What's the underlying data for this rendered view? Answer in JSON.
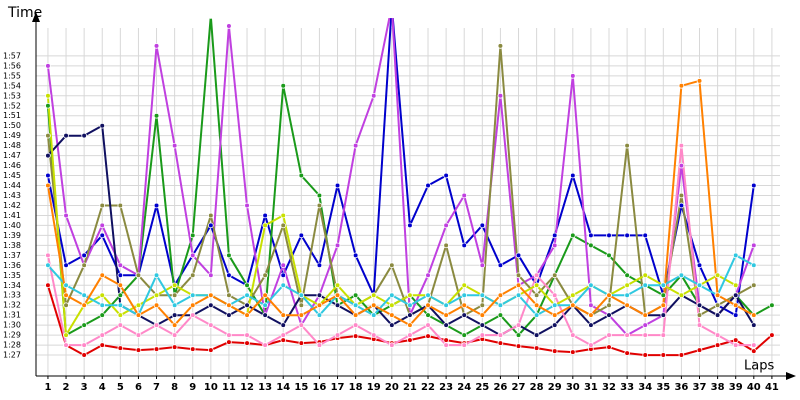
{
  "chart_data": {
    "type": "line",
    "y_label": "Time",
    "x_label": "Laps",
    "x": [
      1,
      2,
      3,
      4,
      5,
      6,
      7,
      8,
      9,
      10,
      11,
      12,
      13,
      14,
      15,
      16,
      17,
      18,
      19,
      20,
      21,
      22,
      23,
      24,
      25,
      26,
      27,
      28,
      29,
      30,
      31,
      32,
      33,
      34,
      35,
      36,
      37,
      38,
      39,
      40,
      41
    ],
    "xticks": [
      1,
      2,
      3,
      4,
      5,
      6,
      7,
      8,
      9,
      10,
      11,
      12,
      13,
      14,
      15,
      16,
      17,
      18,
      19,
      20,
      21,
      22,
      23,
      24,
      25,
      26,
      27,
      28,
      29,
      30,
      31,
      32,
      33,
      34,
      35,
      36,
      37,
      38,
      39,
      40,
      41
    ],
    "xlim": [
      0.34,
      42
    ],
    "ylim": [
      84.9,
      120.8
    ],
    "yticks": [
      {
        "value": 87,
        "label": "1:27"
      },
      {
        "value": 88,
        "label": "1:28"
      },
      {
        "value": 89,
        "label": "1:29"
      },
      {
        "value": 90,
        "label": "1:30"
      },
      {
        "value": 91,
        "label": "1:31"
      },
      {
        "value": 92,
        "label": "1:32"
      },
      {
        "value": 93,
        "label": "1:33"
      },
      {
        "value": 94,
        "label": "1:34"
      },
      {
        "value": 95,
        "label": "1:35"
      },
      {
        "value": 96,
        "label": "1:36"
      },
      {
        "value": 97,
        "label": "1:37"
      },
      {
        "value": 98,
        "label": "1:38"
      },
      {
        "value": 99,
        "label": "1:39"
      },
      {
        "value": 100,
        "label": "1:40"
      },
      {
        "value": 101,
        "label": "1:41"
      },
      {
        "value": 102,
        "label": "1:42"
      },
      {
        "value": 103,
        "label": "1:43"
      },
      {
        "value": 104,
        "label": "1:44"
      },
      {
        "value": 105,
        "label": "1:45"
      },
      {
        "value": 106,
        "label": "1:46"
      },
      {
        "value": 107,
        "label": "1:47"
      },
      {
        "value": 108,
        "label": "1:48"
      },
      {
        "value": 109,
        "label": "1:49"
      },
      {
        "value": 110,
        "label": "1:50"
      },
      {
        "value": 111,
        "label": "1:51"
      },
      {
        "value": 112,
        "label": "1:52"
      },
      {
        "value": 113,
        "label": "1:53"
      },
      {
        "value": 114,
        "label": "1:54"
      },
      {
        "value": 115,
        "label": "1:55"
      },
      {
        "value": 116,
        "label": "1:56"
      },
      {
        "value": 117,
        "label": "1:57"
      }
    ],
    "grid": true,
    "series": [
      {
        "color": "#e00000",
        "values": [
          94,
          88,
          87,
          88,
          87.7,
          87.5,
          87.6,
          87.8,
          87.6,
          87.5,
          88.3,
          88.2,
          88.0,
          88.5,
          88.2,
          88.3,
          88.7,
          88.9,
          88.6,
          88.2,
          88.5,
          88.9,
          88.5,
          88.2,
          88.6,
          88.2,
          87.9,
          87.7,
          87.4,
          87.3,
          87.6,
          87.8,
          87.2,
          87,
          87,
          87,
          87.5,
          88,
          88.5,
          87.4,
          89
        ]
      },
      {
        "color": "#0000cc",
        "values": [
          105,
          96,
          97,
          99,
          95,
          95,
          102,
          94,
          97,
          100,
          95,
          94,
          101,
          95,
          99,
          96,
          104,
          97,
          93,
          122,
          100,
          104,
          105,
          98,
          100,
          96,
          97,
          94,
          99,
          105,
          99,
          99,
          99,
          99,
          93,
          102,
          96,
          92,
          91,
          104,
          null
        ]
      },
      {
        "color": "#1a9a1a",
        "values": [
          112,
          89,
          90,
          91,
          93,
          95,
          111,
          93,
          99,
          121,
          97,
          94,
          91,
          114,
          105,
          103,
          92,
          93,
          91,
          92,
          93,
          91,
          90,
          89,
          90,
          91,
          89,
          91,
          95,
          99,
          98,
          97,
          95,
          94,
          93,
          95,
          92,
          91,
          93,
          91,
          92
        ]
      },
      {
        "color": "#c040e0",
        "values": [
          116,
          101,
          96,
          100,
          96,
          95,
          118,
          108,
          97,
          95,
          120,
          102,
          91,
          96,
          90,
          93,
          98,
          108,
          113,
          122,
          91,
          95,
          100,
          103,
          96,
          113,
          94,
          95,
          98,
          115,
          92,
          91,
          89,
          90,
          91,
          106,
          92,
          91,
          93,
          98,
          null
        ]
      },
      {
        "color": "#8a8a40",
        "values": [
          109,
          92,
          96,
          102,
          102,
          95,
          93,
          93,
          95,
          101,
          93,
          92,
          95,
          100,
          92,
          102,
          93,
          92,
          93,
          96,
          91,
          92,
          98,
          91,
          92,
          118,
          95,
          93,
          95,
          92,
          91,
          92,
          108,
          91,
          92,
          103,
          91,
          92,
          93,
          94,
          null
        ]
      },
      {
        "color": "#101060",
        "values": [
          107,
          109,
          109,
          110,
          92,
          91,
          90,
          91,
          91,
          92,
          91,
          92,
          91,
          90,
          93,
          93,
          92,
          91,
          92,
          90,
          91,
          92,
          90,
          91,
          90,
          89,
          90,
          89,
          90,
          92,
          90,
          91,
          92,
          91,
          91,
          93,
          92,
          91,
          93,
          90,
          null
        ]
      },
      {
        "color": "#ff88c8",
        "values": [
          97,
          88,
          88,
          89,
          90,
          89,
          90,
          89,
          91,
          90,
          89,
          89,
          88,
          89,
          90,
          88,
          89,
          90,
          89,
          88,
          89,
          90,
          88,
          88,
          89,
          89,
          90,
          95,
          93,
          89,
          88,
          89,
          89,
          89,
          89,
          108,
          90,
          89,
          88,
          88,
          null
        ]
      },
      {
        "color": "#c8e000",
        "values": [
          113,
          89,
          92,
          93,
          91,
          92,
          93,
          94,
          93,
          93,
          92,
          91,
          100,
          101,
          93,
          92,
          94,
          92,
          93,
          92,
          93,
          93,
          92,
          94,
          93,
          92,
          93,
          94,
          92,
          93,
          94,
          93,
          94,
          95,
          94,
          93,
          94,
          95,
          94,
          null,
          null
        ]
      },
      {
        "color": "#30c8e0",
        "values": [
          96,
          94,
          93,
          92,
          92,
          91,
          95,
          92,
          93,
          93,
          92,
          93,
          92,
          94,
          93,
          91,
          93,
          92,
          91,
          93,
          92,
          93,
          92,
          93,
          93,
          92,
          93,
          91,
          92,
          92,
          94,
          93,
          93,
          94,
          94,
          95,
          94,
          93,
          97,
          96,
          null
        ]
      },
      {
        "color": "#ff8000",
        "values": [
          104,
          93,
          92,
          95,
          94,
          91,
          92,
          90,
          92,
          93,
          92,
          91,
          93,
          91,
          91,
          92,
          93,
          91,
          92,
          91,
          90,
          92,
          91,
          92,
          91,
          93,
          94,
          92,
          91,
          92,
          91,
          93,
          92,
          91,
          92,
          114,
          114.5,
          93,
          92,
          91,
          null
        ]
      }
    ]
  }
}
